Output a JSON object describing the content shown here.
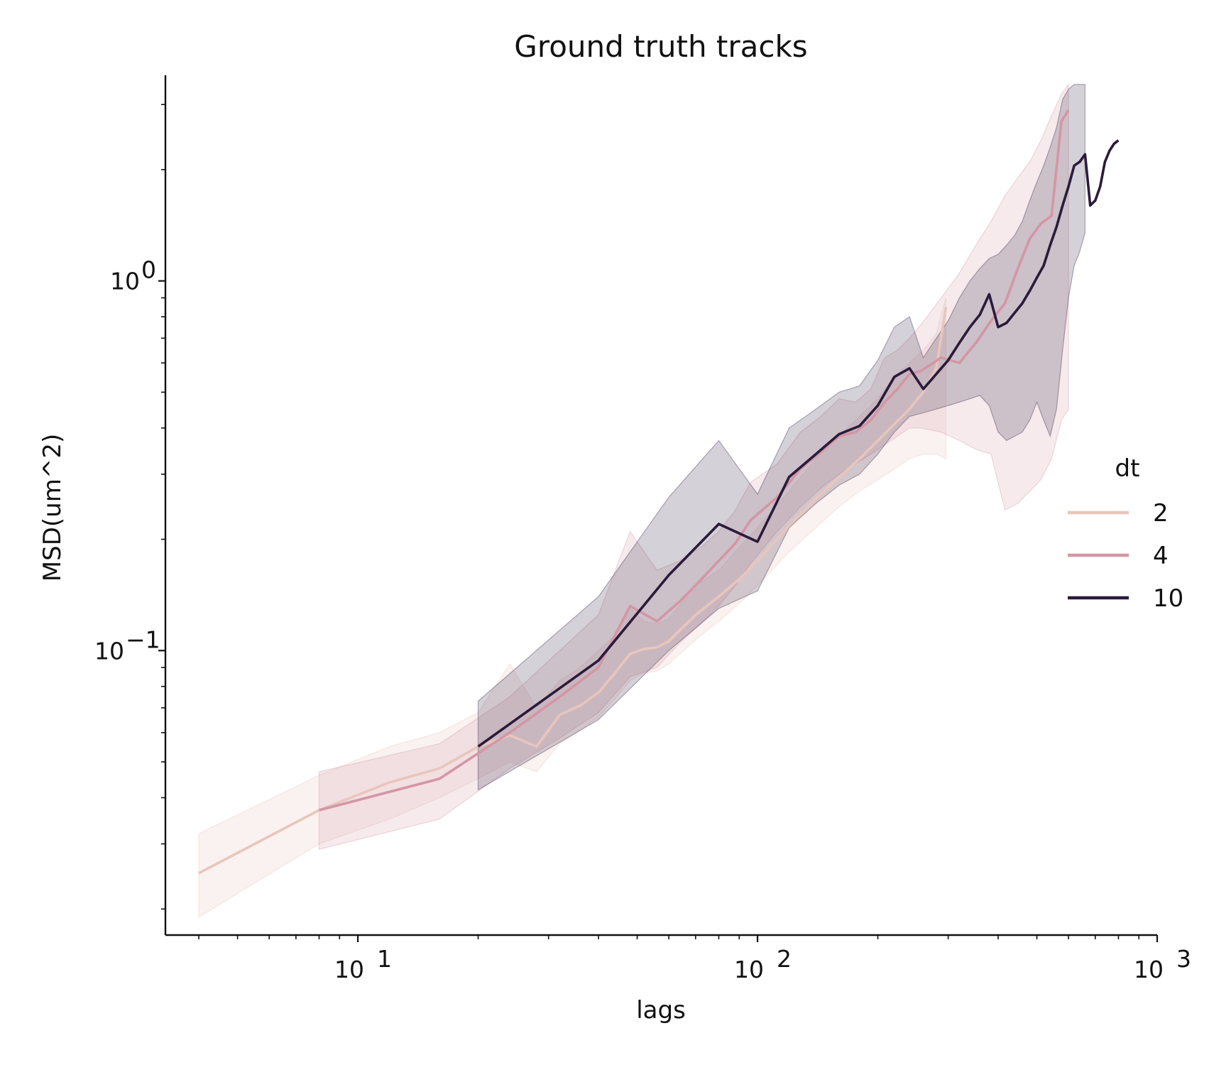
{
  "chart_data": {
    "type": "line",
    "title": "Ground truth tracks",
    "xlabel": "lags",
    "ylabel": "MSD(um^2)",
    "xscale": "log",
    "yscale": "log",
    "xlim": [
      3.3,
      1000
    ],
    "ylim": [
      0.017,
      3.6
    ],
    "xticks": [
      {
        "value": 10,
        "base": "10",
        "exp": "1"
      },
      {
        "value": 100,
        "base": "10",
        "exp": "2"
      },
      {
        "value": 1000,
        "base": "10",
        "exp": "3"
      }
    ],
    "yticks": [
      {
        "value": 0.1,
        "base": "10",
        "exp": "−1"
      },
      {
        "value": 1,
        "base": "10",
        "exp": "0"
      }
    ],
    "grid": false,
    "legend": {
      "title": "dt",
      "placement": "center-right",
      "entries": [
        {
          "label": "2",
          "color": "#e8c6bb"
        },
        {
          "label": "4",
          "color": "#d496a4"
        },
        {
          "label": "10",
          "color": "#2a1b3b"
        }
      ]
    },
    "series": [
      {
        "name": "2",
        "color": "#e8c6bb",
        "band_opacity": 0.22,
        "x": [
          4,
          8,
          12,
          16,
          20,
          24,
          28,
          32,
          36,
          40,
          44,
          48,
          52,
          56,
          60,
          70,
          80,
          90,
          100,
          120,
          140,
          160,
          180,
          200,
          220,
          240,
          260,
          280,
          296
        ],
        "y": [
          0.025,
          0.037,
          0.044,
          0.048,
          0.055,
          0.059,
          0.055,
          0.067,
          0.071,
          0.077,
          0.087,
          0.098,
          0.101,
          0.102,
          0.106,
          0.125,
          0.14,
          0.156,
          0.175,
          0.218,
          0.258,
          0.294,
          0.33,
          0.37,
          0.41,
          0.45,
          0.5,
          0.58,
          0.85
        ],
        "lower": [
          0.019,
          0.03,
          0.035,
          0.04,
          0.045,
          0.05,
          0.047,
          0.056,
          0.061,
          0.066,
          0.074,
          0.083,
          0.087,
          0.088,
          0.092,
          0.107,
          0.12,
          0.134,
          0.15,
          0.185,
          0.215,
          0.245,
          0.27,
          0.29,
          0.31,
          0.33,
          0.34,
          0.34,
          0.33
        ],
        "upper": [
          0.032,
          0.046,
          0.055,
          0.06,
          0.068,
          0.092,
          0.07,
          0.083,
          0.09,
          0.1,
          0.11,
          0.13,
          0.12,
          0.118,
          0.122,
          0.15,
          0.165,
          0.19,
          0.215,
          0.27,
          0.33,
          0.38,
          0.43,
          0.48,
          0.55,
          0.6,
          0.65,
          0.72,
          0.9
        ]
      },
      {
        "name": "4",
        "color": "#d496a4",
        "band_opacity": 0.2,
        "x": [
          8,
          16,
          24,
          32,
          40,
          48,
          56,
          64,
          72,
          80,
          88,
          96,
          112,
          128,
          144,
          160,
          176,
          192,
          208,
          224,
          240,
          256,
          288,
          320,
          352,
          384,
          416,
          448,
          480,
          512,
          544,
          576,
          600
        ],
        "y": [
          0.037,
          0.045,
          0.06,
          0.075,
          0.09,
          0.132,
          0.12,
          0.136,
          0.155,
          0.175,
          0.195,
          0.225,
          0.26,
          0.31,
          0.345,
          0.38,
          0.39,
          0.42,
          0.47,
          0.51,
          0.56,
          0.57,
          0.62,
          0.6,
          0.68,
          0.78,
          0.87,
          1.08,
          1.3,
          1.43,
          1.5,
          2.7,
          2.9
        ],
        "lower": [
          0.029,
          0.035,
          0.048,
          0.058,
          0.068,
          0.085,
          0.09,
          0.105,
          0.118,
          0.132,
          0.15,
          0.172,
          0.21,
          0.245,
          0.275,
          0.3,
          0.32,
          0.34,
          0.36,
          0.38,
          0.4,
          0.4,
          0.39,
          0.37,
          0.35,
          0.34,
          0.24,
          0.25,
          0.27,
          0.29,
          0.33,
          0.42,
          0.45
        ],
        "upper": [
          0.047,
          0.056,
          0.075,
          0.1,
          0.125,
          0.21,
          0.165,
          0.175,
          0.19,
          0.21,
          0.24,
          0.285,
          0.32,
          0.39,
          0.43,
          0.48,
          0.47,
          0.51,
          0.62,
          0.65,
          0.7,
          0.76,
          0.9,
          1.05,
          1.25,
          1.45,
          1.7,
          1.9,
          2.1,
          2.4,
          2.8,
          3.2,
          3.4
        ]
      },
      {
        "name": "10",
        "color": "#2a1b3b",
        "band_opacity": 0.2,
        "x": [
          20,
          40,
          60,
          80,
          100,
          120,
          140,
          160,
          180,
          200,
          220,
          240,
          260,
          280,
          300,
          320,
          340,
          360,
          380,
          400,
          420,
          440,
          460,
          480,
          500,
          520,
          540,
          560,
          580,
          600,
          620,
          640,
          660,
          680,
          700,
          720,
          740,
          760,
          780,
          800
        ],
        "y": [
          0.055,
          0.094,
          0.16,
          0.22,
          0.197,
          0.295,
          0.34,
          0.385,
          0.405,
          0.46,
          0.55,
          0.58,
          0.51,
          0.56,
          0.61,
          0.68,
          0.75,
          0.81,
          0.92,
          0.75,
          0.77,
          0.82,
          0.87,
          0.94,
          1.02,
          1.1,
          1.25,
          1.4,
          1.6,
          1.8,
          2.05,
          2.1,
          2.2,
          1.6,
          1.65,
          1.8,
          2.1,
          2.25,
          2.35,
          2.4
        ],
        "lower": [
          0.042,
          0.065,
          0.1,
          0.13,
          0.145,
          0.215,
          0.25,
          0.28,
          0.3,
          0.34,
          0.39,
          0.43,
          0.44,
          0.45,
          0.46,
          0.47,
          0.48,
          0.49,
          0.46,
          0.39,
          0.37,
          0.38,
          0.39,
          0.42,
          0.47,
          0.42,
          0.38,
          0.45,
          0.65,
          0.9,
          1.1,
          1.2,
          1.35,
          null,
          null,
          null,
          null,
          null,
          null,
          null
        ],
        "upper": [
          0.073,
          0.14,
          0.26,
          0.37,
          0.265,
          0.4,
          0.45,
          0.5,
          0.52,
          0.61,
          0.75,
          0.8,
          0.62,
          0.7,
          0.78,
          0.9,
          1.0,
          1.08,
          1.15,
          1.18,
          1.25,
          1.33,
          1.45,
          1.65,
          1.85,
          2.05,
          2.3,
          2.6,
          3.1,
          3.3,
          3.4,
          3.4,
          3.4,
          null,
          null,
          null,
          null,
          null,
          null,
          null
        ]
      }
    ]
  }
}
